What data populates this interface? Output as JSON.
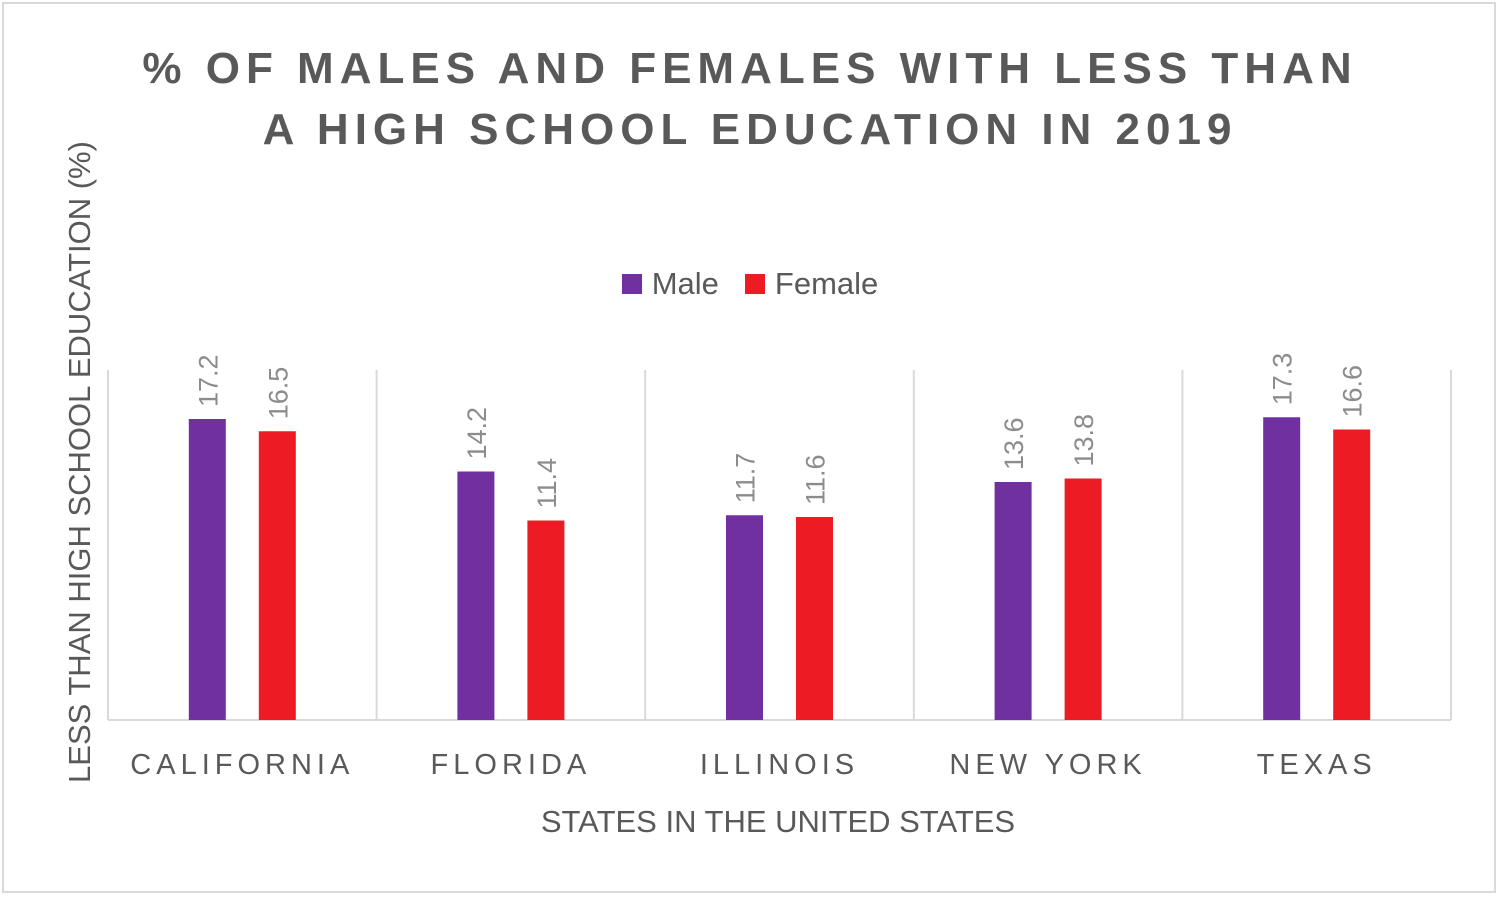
{
  "chart_data": {
    "type": "bar",
    "title_lines": [
      "% OF MALES AND FEMALES WITH LESS THAN",
      "A HIGH SCHOOL EDUCATION IN 2019"
    ],
    "xlabel": "STATES IN THE UNITED STATES",
    "ylabel": "LESS THAN HIGH SCHOOL EDUCATION (%)",
    "categories": [
      "CALIFORNIA",
      "FLORIDA",
      "ILLINOIS",
      "NEW YORK",
      "TEXAS"
    ],
    "series": [
      {
        "name": "Male",
        "color": "#7030a0",
        "values": [
          17.2,
          14.2,
          11.7,
          13.6,
          17.3
        ]
      },
      {
        "name": "Female",
        "color": "#ed1c24",
        "values": [
          16.5,
          11.4,
          11.6,
          13.8,
          16.6
        ]
      }
    ],
    "ylim": [
      0,
      20
    ],
    "legend_position": "top-center",
    "grid": "vertical category separators",
    "colors": {
      "text": "#595959",
      "data_label": "#8c8c8c",
      "axis": "#d9d9d9"
    }
  }
}
